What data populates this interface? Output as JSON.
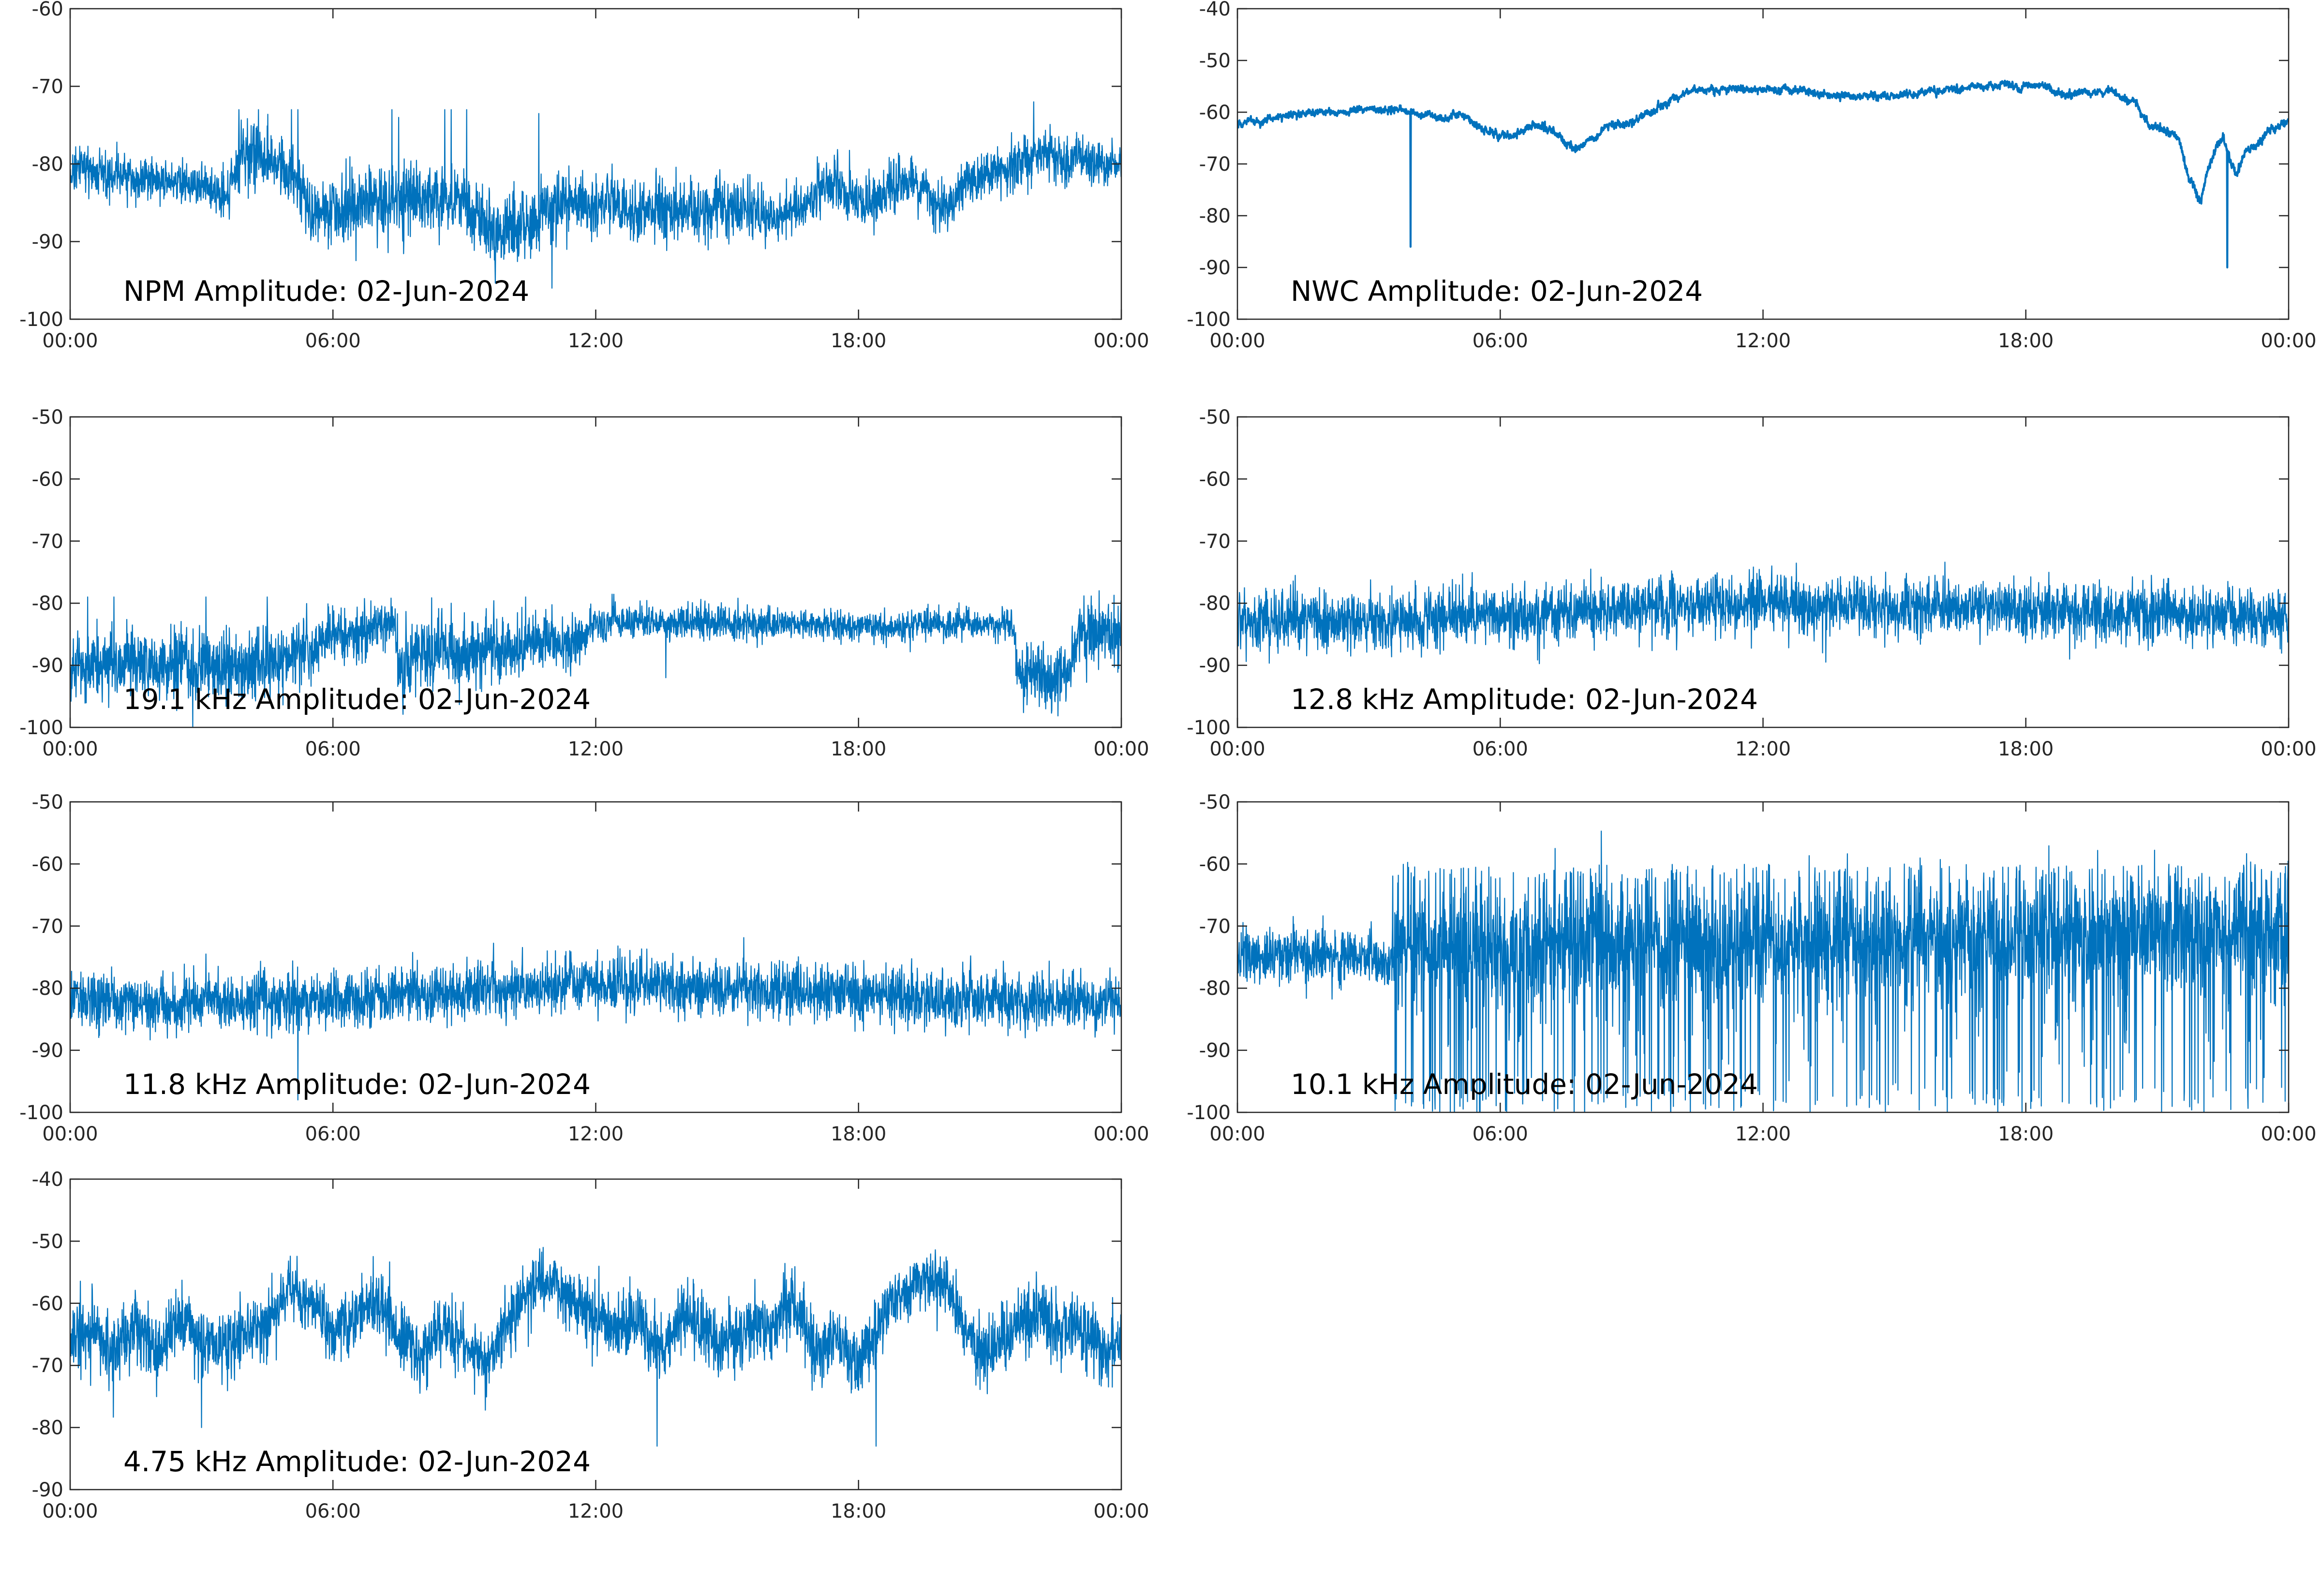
{
  "figure": {
    "line_color": "#0072BD",
    "background": "#ffffff",
    "x_ticks": [
      "00:00",
      "06:00",
      "12:00",
      "18:00",
      "00:00"
    ]
  },
  "chart_data": [
    {
      "type": "line",
      "title": "NPM Amplitude: 02-Jun-2024",
      "xlabel": "",
      "ylabel": "",
      "x_ticks": [
        "00:00",
        "06:00",
        "12:00",
        "18:00",
        "00:00"
      ],
      "y_ticks": [
        "-60",
        "-70",
        "-80",
        "-90",
        "-100"
      ],
      "ylim": [
        -100,
        -60
      ],
      "xlim_hours": [
        0,
        24
      ],
      "grid": false,
      "series": [
        {
          "x_hours": [
            0,
            1,
            2,
            3,
            3.6,
            3.9,
            4.2,
            4.5,
            5.2,
            5.5,
            6,
            7,
            8,
            9,
            9.5,
            10,
            10.5,
            11,
            12,
            13,
            14,
            15,
            16,
            16.5,
            17,
            17.5,
            18,
            18.5,
            19,
            19.5,
            20,
            20.5,
            21,
            21.5,
            22,
            22.5,
            23,
            23.5,
            24
          ],
          "center": [
            -81,
            -81.5,
            -82,
            -82.5,
            -84,
            -79,
            -78,
            -80,
            -81,
            -87,
            -86,
            -85,
            -84,
            -85,
            -88,
            -89,
            -88,
            -86,
            -85,
            -86,
            -86,
            -85,
            -87,
            -86,
            -84,
            -82,
            -85,
            -84,
            -82,
            -83,
            -86,
            -82,
            -81,
            -80,
            -79,
            -79,
            -79,
            -80,
            -80
          ],
          "noise": [
            2.5,
            2.5,
            2.5,
            2.5,
            2.5,
            3.5,
            3.5,
            3.0,
            3.5,
            3.5,
            4.0,
            4.0,
            4.0,
            4.0,
            4.0,
            4.0,
            4.0,
            3.5,
            3.5,
            3.5,
            3.5,
            3.5,
            3.0,
            3.0,
            3.0,
            3.0,
            3.0,
            3.0,
            3.0,
            3.0,
            3.0,
            3.0,
            3.0,
            2.8,
            2.8,
            2.8,
            2.5,
            2.5,
            2.5
          ],
          "spikes": [
            [
              3.85,
              -73
            ],
            [
              4.3,
              -73
            ],
            [
              5.05,
              -73
            ],
            [
              5.2,
              -73
            ],
            [
              7.35,
              -73
            ],
            [
              7.5,
              -74
            ],
            [
              8.55,
              -73
            ],
            [
              8.7,
              -73
            ],
            [
              9.05,
              -73
            ],
            [
              10.7,
              -73.5
            ],
            [
              11.0,
              -96
            ],
            [
              22.0,
              -72
            ]
          ]
        }
      ]
    },
    {
      "type": "line",
      "title": "NWC Amplitude: 02-Jun-2024",
      "xlabel": "",
      "ylabel": "",
      "x_ticks": [
        "00:00",
        "06:00",
        "12:00",
        "18:00",
        "00:00"
      ],
      "y_ticks": [
        "-40",
        "-50",
        "-60",
        "-70",
        "-80",
        "-90",
        "-100"
      ],
      "ylim": [
        -100,
        -40
      ],
      "xlim_hours": [
        0,
        24
      ],
      "grid": false,
      "series": [
        {
          "x_hours": [
            0,
            0.5,
            1,
            2,
            3,
            3.5,
            4,
            4.5,
            4.8,
            5,
            5.5,
            6,
            6.3,
            6.7,
            7,
            7.3,
            7.5,
            7.8,
            8.1,
            8.5,
            9,
            9.5,
            10,
            10.5,
            11,
            12,
            13,
            14,
            15,
            16,
            17,
            18,
            19,
            20,
            20.5,
            20.8,
            21,
            21.5,
            21.7,
            22,
            22.2,
            22.4,
            22.5,
            22.8,
            23,
            23.3,
            23.6,
            24
          ],
          "center": [
            -62,
            -61.5,
            -60.5,
            -60,
            -59.5,
            -59.5,
            -60,
            -61,
            -61.5,
            -60,
            -63,
            -64.5,
            -64.5,
            -63,
            -63,
            -64,
            -66,
            -67,
            -65,
            -63,
            -62,
            -60,
            -57,
            -56,
            -56,
            -55.5,
            -56,
            -57,
            -57,
            -56,
            -55,
            -55,
            -56,
            -56,
            -58,
            -62,
            -63,
            -65,
            -72,
            -78,
            -70,
            -66,
            -65,
            -72,
            -68,
            -66,
            -63,
            -62
          ],
          "noise": [
            0.5,
            0.5,
            0.5,
            0.5,
            0.5,
            0.5,
            0.5,
            0.5,
            0.5,
            0.6,
            0.6,
            0.6,
            0.6,
            0.6,
            0.6,
            0.6,
            0.6,
            0.6,
            0.6,
            0.6,
            0.6,
            0.6,
            0.6,
            0.5,
            0.5,
            0.5,
            0.5,
            0.5,
            0.5,
            0.5,
            0.5,
            0.5,
            0.5,
            0.5,
            0.6,
            0.6,
            0.6,
            0.6,
            0.6,
            0.8,
            0.8,
            0.6,
            0.6,
            0.6,
            0.6,
            0.6,
            0.6,
            0.5
          ],
          "spikes": [
            [
              3.95,
              -86
            ],
            [
              22.6,
              -90
            ]
          ]
        }
      ]
    },
    {
      "type": "line",
      "title": "19.1 kHz Amplitude: 02-Jun-2024",
      "xlabel": "",
      "ylabel": "",
      "x_ticks": [
        "00:00",
        "06:00",
        "12:00",
        "18:00",
        "00:00"
      ],
      "y_ticks": [
        "-50",
        "-60",
        "-70",
        "-80",
        "-90",
        "-100"
      ],
      "ylim": [
        -100,
        -50
      ],
      "xlim_hours": [
        0,
        24
      ],
      "grid": false,
      "series": [
        {
          "x_hours": [
            0,
            1,
            2,
            3,
            4,
            5,
            5.5,
            6,
            6.5,
            7,
            7.4,
            7.5,
            8,
            8.5,
            9,
            9.5,
            10,
            10.5,
            11,
            11.5,
            12,
            13,
            14,
            15,
            16,
            17,
            18,
            19,
            20,
            21,
            21.5,
            21.7,
            22,
            22.5,
            22.8,
            23,
            23.5,
            24
          ],
          "center": [
            -90,
            -90,
            -90,
            -90,
            -90,
            -89,
            -87,
            -85,
            -85,
            -84,
            -83,
            -91,
            -88,
            -87,
            -89,
            -87,
            -88,
            -86,
            -86,
            -87,
            -83,
            -83,
            -83,
            -83,
            -83.5,
            -83.5,
            -83.5,
            -83.5,
            -83.5,
            -83.5,
            -83.5,
            -92,
            -92,
            -92,
            -92,
            -85,
            -85,
            -85
          ],
          "noise": [
            5,
            5,
            5,
            5,
            5,
            5,
            4,
            4,
            4,
            4,
            3,
            5,
            5,
            5,
            5,
            5,
            4,
            4,
            4,
            4,
            2.5,
            2.5,
            2.5,
            2.5,
            2,
            2,
            2,
            2,
            2,
            2,
            2,
            4,
            4,
            4,
            4,
            4.5,
            4.5,
            4.5
          ],
          "spikes": [
            [
              0.4,
              -79
            ],
            [
              1.0,
              -79
            ],
            [
              2.8,
              -100
            ],
            [
              3.1,
              -79
            ],
            [
              4.5,
              -79
            ],
            [
              8.7,
              -80
            ],
            [
              10.4,
              -79
            ],
            [
              13.6,
              -92
            ]
          ]
        }
      ]
    },
    {
      "type": "line",
      "title": "12.8 kHz Amplitude: 02-Jun-2024",
      "xlabel": "",
      "ylabel": "",
      "x_ticks": [
        "00:00",
        "06:00",
        "12:00",
        "18:00",
        "00:00"
      ],
      "y_ticks": [
        "-50",
        "-60",
        "-70",
        "-80",
        "-90",
        "-100"
      ],
      "ylim": [
        -100,
        -50
      ],
      "xlim_hours": [
        0,
        24
      ],
      "grid": false,
      "series": [
        {
          "x_hours": [
            0,
            3,
            6,
            9,
            12,
            15,
            18,
            21,
            24
          ],
          "center": [
            -83,
            -83,
            -82,
            -81,
            -80,
            -80.5,
            -81,
            -82,
            -82.5
          ],
          "noise": [
            4,
            4,
            4,
            4,
            4,
            4,
            4,
            4,
            4
          ],
          "spikes": [
            [
              12.2,
              -74
            ],
            [
              14.8,
              -75
            ],
            [
              19.0,
              -89
            ]
          ]
        }
      ]
    },
    {
      "type": "line",
      "title": "11.8 kHz Amplitude: 02-Jun-2024",
      "xlabel": "",
      "ylabel": "",
      "x_ticks": [
        "00:00",
        "06:00",
        "12:00",
        "18:00",
        "00:00"
      ],
      "y_ticks": [
        "-50",
        "-60",
        "-70",
        "-80",
        "-90",
        "-100"
      ],
      "ylim": [
        -100,
        -50
      ],
      "xlim_hours": [
        0,
        24
      ],
      "grid": false,
      "series": [
        {
          "x_hours": [
            0,
            3,
            6,
            9,
            12,
            15,
            18,
            21,
            24
          ],
          "center": [
            -82,
            -82.5,
            -82,
            -80.5,
            -79,
            -80,
            -81,
            -82,
            -82.5
          ],
          "noise": [
            4,
            4,
            4,
            4,
            4,
            4,
            4,
            4,
            4
          ],
          "spikes": [
            [
              3.1,
              -74.5
            ],
            [
              5.2,
              -98
            ],
            [
              12.6,
              -75
            ]
          ]
        }
      ]
    },
    {
      "type": "line",
      "title": "10.1 kHz Amplitude: 02-Jun-2024",
      "xlabel": "",
      "ylabel": "",
      "x_ticks": [
        "00:00",
        "06:00",
        "12:00",
        "18:00",
        "00:00"
      ],
      "y_ticks": [
        "-50",
        "-60",
        "-70",
        "-80",
        "-90",
        "-100"
      ],
      "ylim": [
        -100,
        -50
      ],
      "xlim_hours": [
        0,
        24
      ],
      "grid": false,
      "series": [
        {
          "x_hours": [
            0,
            1,
            2,
            3,
            3.5,
            4,
            6,
            9,
            12,
            15,
            18,
            21,
            24
          ],
          "center": [
            -75,
            -75,
            -75,
            -75,
            -75,
            -72,
            -73,
            -73,
            -73,
            -72,
            -72,
            -71,
            -71
          ],
          "noise": [
            4,
            4,
            4,
            4,
            4,
            6,
            6,
            6,
            6,
            6,
            6,
            6,
            6
          ],
          "dropout_start_hours": 3.5,
          "dropout_floor": -100,
          "peak_ceiling": -63
        }
      ]
    },
    {
      "type": "line",
      "title": "4.75 kHz Amplitude: 02-Jun-2024",
      "xlabel": "",
      "ylabel": "",
      "x_ticks": [
        "00:00",
        "06:00",
        "12:00",
        "18:00",
        "00:00"
      ],
      "y_ticks": [
        "-40",
        "-50",
        "-60",
        "-70",
        "-80",
        "-90"
      ],
      "ylim": [
        -90,
        -40
      ],
      "xlim_hours": [
        0,
        24
      ],
      "grid": false,
      "series": [
        {
          "x_hours": [
            0,
            0.5,
            1,
            1.5,
            2,
            2.5,
            3,
            3.5,
            4,
            4.5,
            5,
            5.5,
            6,
            6.5,
            7,
            7.5,
            8,
            8.5,
            9,
            9.5,
            10,
            10.5,
            11,
            11.5,
            12,
            12.5,
            13,
            13.5,
            14,
            14.5,
            15,
            15.5,
            16,
            16.5,
            17,
            17.5,
            18,
            18.5,
            19,
            19.5,
            20,
            20.5,
            21,
            21.5,
            22,
            22.5,
            23,
            23.5,
            24
          ],
          "center": [
            -66,
            -64,
            -67,
            -63,
            -68,
            -62,
            -66,
            -67,
            -65,
            -64,
            -57,
            -60,
            -65,
            -62,
            -60,
            -64,
            -68,
            -64,
            -66,
            -70,
            -62,
            -58,
            -56,
            -60,
            -62,
            -64,
            -63,
            -68,
            -62,
            -65,
            -66,
            -64,
            -63,
            -60,
            -68,
            -65,
            -70,
            -62,
            -58,
            -56,
            -57,
            -65,
            -68,
            -64,
            -62,
            -65,
            -63,
            -68,
            -66
          ],
          "noise": [
            5,
            5,
            5,
            5,
            5,
            5,
            5,
            5,
            5,
            5,
            4,
            4,
            5,
            5,
            5,
            5,
            5,
            5,
            5,
            5,
            5,
            5,
            4,
            4,
            5,
            5,
            5,
            5,
            5,
            5,
            5,
            5,
            5,
            5,
            5,
            5,
            5,
            5,
            4,
            4,
            4,
            5,
            5,
            5,
            5,
            5,
            5,
            5,
            5
          ],
          "spikes": [
            [
              3.0,
              -80
            ],
            [
              13.4,
              -83
            ],
            [
              18.4,
              -83
            ],
            [
              10.8,
              -51
            ]
          ]
        }
      ]
    }
  ]
}
